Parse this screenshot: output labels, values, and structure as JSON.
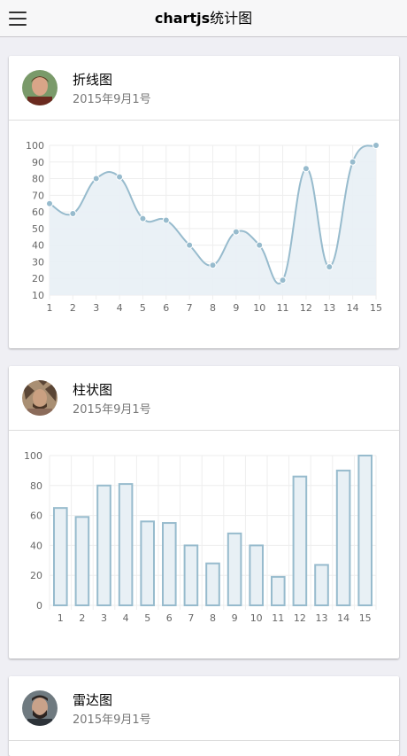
{
  "topbar": {
    "title_bold": "chartjs",
    "title_rest": "统计图"
  },
  "cards": [
    {
      "title": "折线图",
      "date": "2015年9月1号"
    },
    {
      "title": "柱状图",
      "date": "2015年9月1号"
    },
    {
      "title": "雷达图",
      "date": "2015年9月1号"
    }
  ],
  "colors": {
    "series_stroke": "#97bbcd",
    "series_fill": "#e8f0f5",
    "grid": "#eeeeee"
  },
  "chart_data": [
    {
      "type": "line",
      "categories": [
        "1",
        "2",
        "3",
        "4",
        "5",
        "6",
        "7",
        "8",
        "9",
        "10",
        "11",
        "12",
        "13",
        "14",
        "15"
      ],
      "series": [
        {
          "values": [
            65,
            59,
            80,
            81,
            56,
            55,
            40,
            28,
            48,
            40,
            19,
            86,
            27,
            90,
            100
          ]
        }
      ],
      "ylim": [
        10,
        100
      ],
      "yticks": [
        10,
        20,
        30,
        40,
        50,
        60,
        70,
        80,
        90,
        100
      ],
      "grid": true
    },
    {
      "type": "bar",
      "categories": [
        "1",
        "2",
        "3",
        "4",
        "5",
        "6",
        "7",
        "8",
        "9",
        "10",
        "11",
        "12",
        "13",
        "14",
        "15"
      ],
      "series": [
        {
          "values": [
            65,
            59,
            80,
            81,
            56,
            55,
            40,
            28,
            48,
            40,
            19,
            86,
            27,
            90,
            100
          ]
        }
      ],
      "ylim": [
        0,
        100
      ],
      "yticks": [
        0,
        20,
        40,
        60,
        80,
        100
      ],
      "grid": true
    }
  ]
}
